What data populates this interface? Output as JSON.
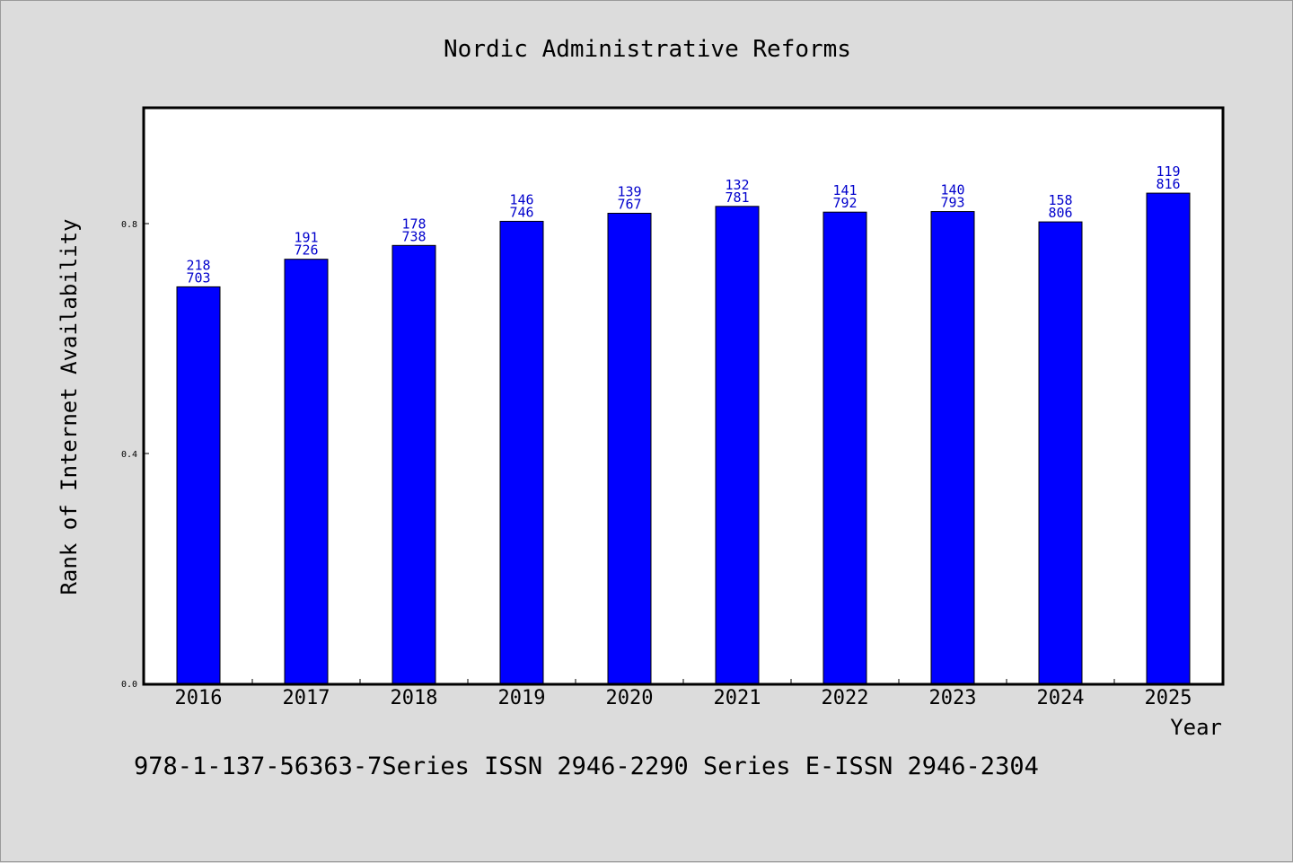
{
  "chart_data": {
    "type": "bar",
    "title": "Nordic Administrative Reforms",
    "xlabel": "Year",
    "ylabel": "Rank of Internet Availability",
    "categories": [
      "2016",
      "2017",
      "2018",
      "2019",
      "2020",
      "2021",
      "2022",
      "2023",
      "2024",
      "2025"
    ],
    "values": [
      0.69,
      0.738,
      0.762,
      0.804,
      0.818,
      0.83,
      0.82,
      0.821,
      0.803,
      0.853
    ],
    "data_labels": [
      [
        "218",
        "703"
      ],
      [
        "191",
        "726"
      ],
      [
        "178",
        "738"
      ],
      [
        "146",
        "746"
      ],
      [
        "139",
        "767"
      ],
      [
        "132",
        "781"
      ],
      [
        "141",
        "792"
      ],
      [
        "140",
        "793"
      ],
      [
        "158",
        "806"
      ],
      [
        "119",
        "816"
      ]
    ],
    "yticks": [
      "0.0",
      "0.4",
      "0.8"
    ],
    "ylim": [
      0,
      1.0
    ],
    "grid": false,
    "legend": "none",
    "bar_color": "#0000ff",
    "label_color": "#0000cc",
    "plot_background": "#ffffff",
    "figure_background": "#dcdcdc"
  },
  "footer": "978-1-137-56363-7Series ISSN 2946-2290 Series E-ISSN 2946-2304"
}
